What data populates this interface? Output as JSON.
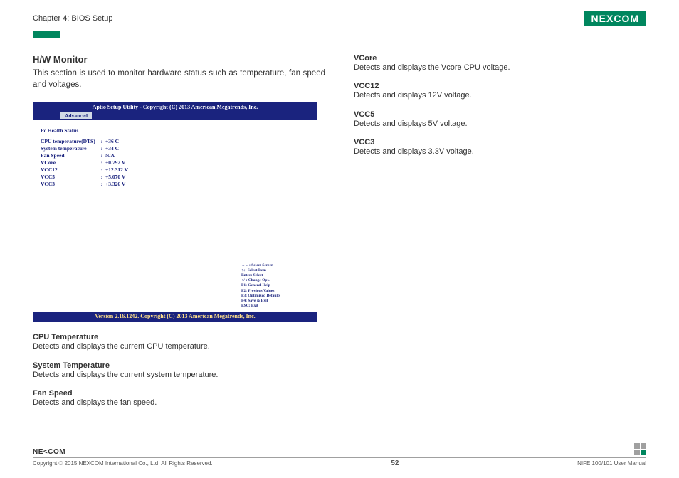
{
  "header": {
    "chapter": "Chapter 4: BIOS Setup",
    "logo": "NEXCOM"
  },
  "leftCol": {
    "title": "H/W Monitor",
    "desc": "This section is used to monitor hardware status such as temperature, fan speed and voltages.",
    "bios": {
      "titlebar": "Aptio Setup Utility - Copyright (C) 2013 American Megatrends, Inc.",
      "tab": "Advanced",
      "healthHdr": "Pc Health Status",
      "rows": [
        {
          "k": "CPU temperature(DTS)",
          "v": "+36 C"
        },
        {
          "k": "System temperature",
          "v": "+34 C"
        },
        {
          "k": "Fan Speed",
          "v": "N/A"
        },
        {
          "k": "VCore",
          "v": "+0.792 V"
        },
        {
          "k": "VCC12",
          "v": "+12.312 V"
        },
        {
          "k": "VCC5",
          "v": "+5.070 V"
        },
        {
          "k": "VCC3",
          "v": "+3.326 V"
        }
      ],
      "help": [
        "→←: Select Screen",
        "↑↓: Select Item",
        "Enter: Select",
        "+/-: Change Opt.",
        "F1: General Help",
        "F2: Previous Values",
        "F3: Optimized Defaults",
        "F4: Save & Exit",
        "ESC: Exit"
      ],
      "footer": "Version 2.16.1242. Copyright (C) 2013 American Megatrends, Inc."
    },
    "blocks": [
      {
        "label": "CPU Temperature",
        "text": "Detects and displays the current CPU temperature."
      },
      {
        "label": "System Temperature",
        "text": "Detects and displays the current system temperature."
      },
      {
        "label": "Fan Speed",
        "text": "Detects and displays the fan speed."
      }
    ]
  },
  "rightCol": {
    "blocks": [
      {
        "label": "VCore",
        "text": "Detects and displays the Vcore CPU voltage."
      },
      {
        "label": "VCC12",
        "text": "Detects and displays 12V voltage."
      },
      {
        "label": "VCC5",
        "text": "Detects and displays 5V voltage."
      },
      {
        "label": "VCC3",
        "text": "Detects and displays 3.3V voltage."
      }
    ]
  },
  "footer": {
    "logo": "NE<COM",
    "copyright": "Copyright © 2015 NEXCOM International Co., Ltd. All Rights Reserved.",
    "page": "52",
    "manual": "NIFE 100/101 User Manual"
  }
}
